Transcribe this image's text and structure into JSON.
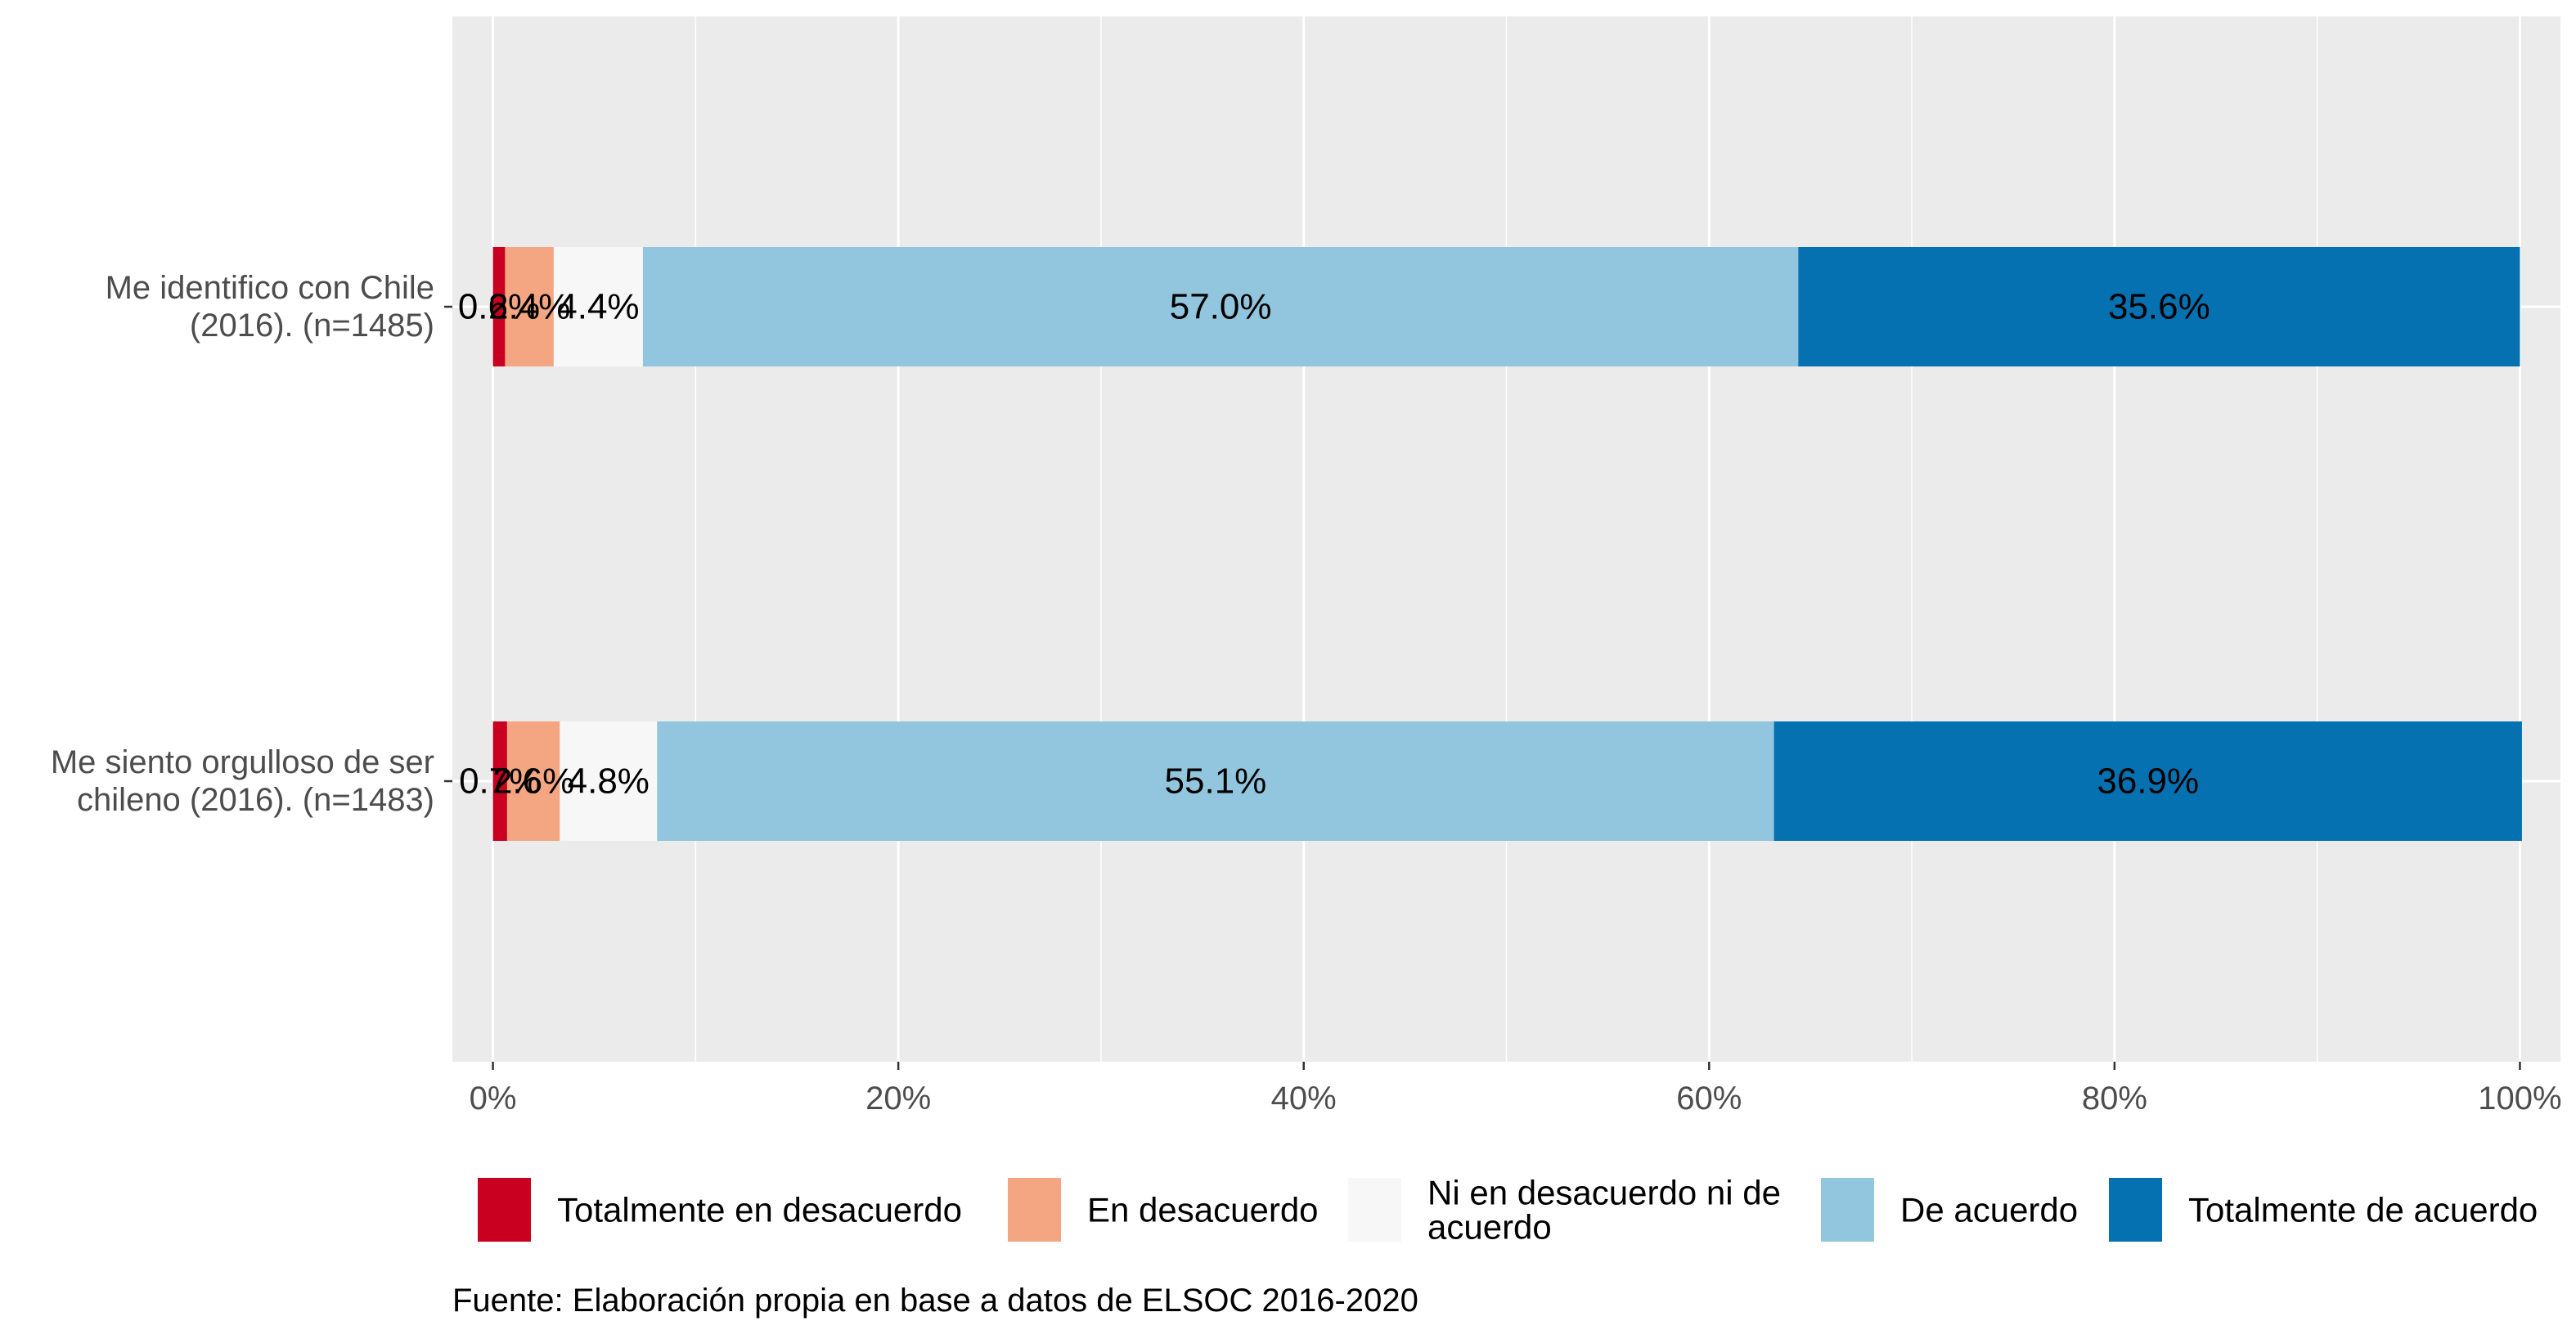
{
  "chart_data": {
    "type": "bar",
    "orientation": "horizontal",
    "stacked": true,
    "categories": [
      [
        "Me identifico con Chile",
        "(2016). (n=1485)"
      ],
      [
        "Me siento orgulloso de ser",
        "chileno (2016). (n=1483)"
      ]
    ],
    "series": [
      {
        "name": "Totalmente en desacuerdo",
        "color": "#ca0020",
        "values": [
          0.6,
          0.7
        ],
        "labels": [
          "0.6%",
          "0.7%"
        ]
      },
      {
        "name": "En desacuerdo",
        "color": "#f4a582",
        "values": [
          2.4,
          2.6
        ],
        "labels": [
          "2.4%",
          "2.6%"
        ]
      },
      {
        "name": [
          "Ni en desacuerdo ni de",
          "acuerdo"
        ],
        "color": "#f7f7f7",
        "values": [
          4.4,
          4.8
        ],
        "labels": [
          "4.4%",
          "4.8%"
        ]
      },
      {
        "name": "De acuerdo",
        "color": "#92c5de",
        "values": [
          57.0,
          55.1
        ],
        "labels": [
          "57.0%",
          "55.1%"
        ]
      },
      {
        "name": "Totalmente de acuerdo",
        "color": "#0571b0",
        "values": [
          35.6,
          36.9
        ],
        "labels": [
          "35.6%",
          "36.9%"
        ]
      }
    ],
    "xlim": [
      -2,
      102
    ],
    "xticks": [
      0,
      20,
      40,
      60,
      80,
      100
    ],
    "xtick_labels": [
      "0%",
      "20%",
      "40%",
      "60%",
      "80%",
      "100%"
    ],
    "xlabel": "",
    "ylabel": "",
    "title": "",
    "grid": true,
    "legend_position": "bottom",
    "caption": "Fuente: Elaboración propia en base a datos de ELSOC 2016-2020",
    "panel_background": "#ebebeb"
  }
}
